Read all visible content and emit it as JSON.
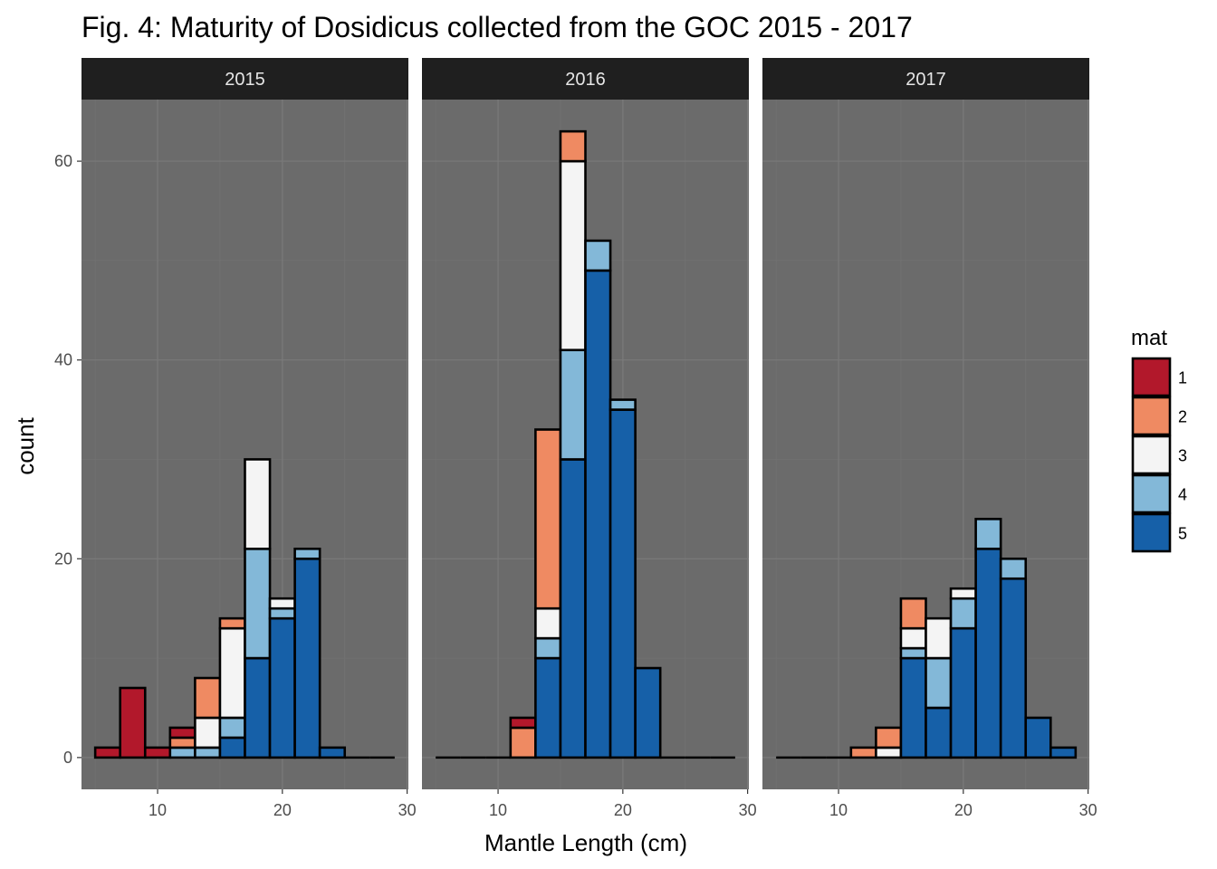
{
  "chart_data": {
    "type": "bar",
    "title": "Fig. 4: Maturity of Dosidicus collected from the GOC 2015 - 2017",
    "xlabel": "Mantle Length (cm)",
    "ylabel": "count",
    "xlim": [
      3.9,
      30.1
    ],
    "ylim": [
      -3.2,
      66.2
    ],
    "x_ticks": [
      10,
      20,
      30
    ],
    "y_ticks": [
      0,
      20,
      40,
      60
    ],
    "bin_width": 2,
    "bin_centers": [
      6,
      8,
      10,
      12,
      14,
      16,
      18,
      20,
      22,
      24,
      26,
      28
    ],
    "stack_order": [
      "5",
      "4",
      "3",
      "2",
      "1"
    ],
    "legend": {
      "title": "mat",
      "position": "right",
      "keys": [
        "1",
        "2",
        "3",
        "4",
        "5"
      ],
      "colors": [
        "#b2182b",
        "#ef8a62",
        "#f4f4f4",
        "#83b8d8",
        "#1660a8"
      ]
    },
    "panel_background": "#6b6b6b",
    "strip_background": "#1f1f1f",
    "grid": true,
    "facets": [
      {
        "label": "2015",
        "series": [
          {
            "name": "1",
            "values": [
              1,
              7,
              1,
              1,
              0,
              0,
              0,
              0,
              0,
              0,
              0,
              0
            ]
          },
          {
            "name": "2",
            "values": [
              0,
              0,
              0,
              1,
              4,
              1,
              0,
              0,
              0,
              0,
              0,
              0
            ]
          },
          {
            "name": "3",
            "values": [
              0,
              0,
              0,
              0,
              3,
              9,
              9,
              1,
              0,
              0,
              0,
              0
            ]
          },
          {
            "name": "4",
            "values": [
              0,
              0,
              0,
              1,
              1,
              2,
              11,
              1,
              1,
              0,
              0,
              0
            ]
          },
          {
            "name": "5",
            "values": [
              0,
              0,
              0,
              0,
              0,
              2,
              10,
              14,
              20,
              1,
              0,
              0
            ]
          }
        ]
      },
      {
        "label": "2016",
        "series": [
          {
            "name": "1",
            "values": [
              0,
              0,
              0,
              1,
              0,
              0,
              0,
              0,
              0,
              0,
              0,
              0
            ]
          },
          {
            "name": "2",
            "values": [
              0,
              0,
              0,
              3,
              18,
              3,
              0,
              0,
              0,
              0,
              0,
              0
            ]
          },
          {
            "name": "3",
            "values": [
              0,
              0,
              0,
              0,
              3,
              19,
              0,
              0,
              0,
              0,
              0,
              0
            ]
          },
          {
            "name": "4",
            "values": [
              0,
              0,
              0,
              0,
              2,
              11,
              3,
              1,
              0,
              0,
              0,
              0
            ]
          },
          {
            "name": "5",
            "values": [
              0,
              0,
              0,
              0,
              10,
              30,
              49,
              35,
              9,
              0,
              0,
              0
            ]
          }
        ]
      },
      {
        "label": "2017",
        "series": [
          {
            "name": "1",
            "values": [
              0,
              0,
              0,
              0,
              0,
              0,
              0,
              0,
              0,
              0,
              0,
              0
            ]
          },
          {
            "name": "2",
            "values": [
              0,
              0,
              0,
              1,
              2,
              3,
              0,
              0,
              0,
              0,
              0,
              0
            ]
          },
          {
            "name": "3",
            "values": [
              0,
              0,
              0,
              0,
              1,
              2,
              4,
              1,
              0,
              0,
              0,
              0
            ]
          },
          {
            "name": "4",
            "values": [
              0,
              0,
              0,
              0,
              0,
              1,
              5,
              3,
              3,
              2,
              0,
              0
            ]
          },
          {
            "name": "5",
            "values": [
              0,
              0,
              0,
              0,
              0,
              10,
              5,
              13,
              21,
              18,
              4,
              1
            ]
          }
        ]
      }
    ]
  }
}
